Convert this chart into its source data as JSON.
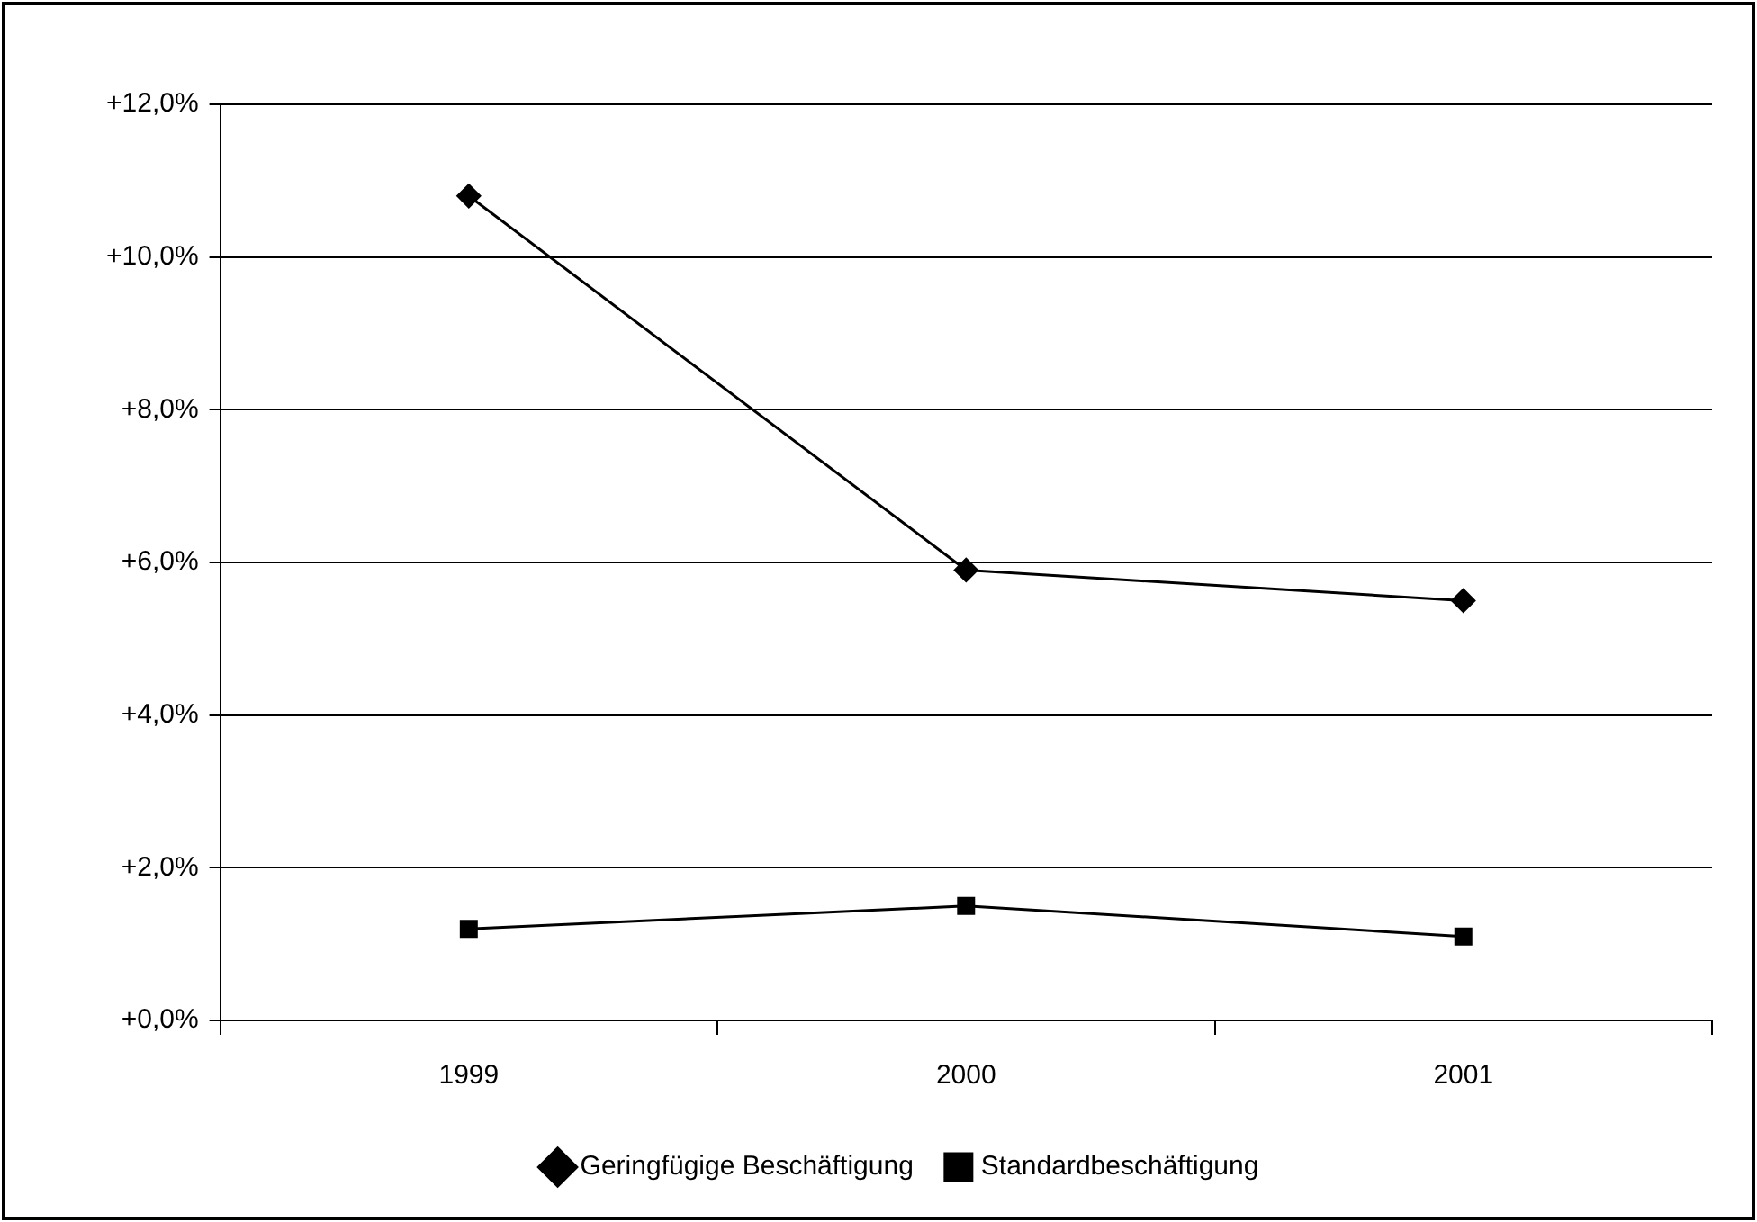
{
  "chart_data": {
    "type": "line",
    "categories": [
      "1999",
      "2000",
      "2001"
    ],
    "series": [
      {
        "name": "Geringfügige Beschäftigung",
        "color": "#000000",
        "marker": "diamond",
        "values": [
          10.8,
          5.9,
          5.5
        ]
      },
      {
        "name": "Standardbeschäftigung",
        "color": "#000000",
        "marker": "square",
        "values": [
          1.2,
          1.5,
          1.1
        ]
      }
    ],
    "ylim": [
      0,
      12
    ],
    "yticks": [
      {
        "value": 0,
        "label": "+0,0%"
      },
      {
        "value": 2,
        "label": "+2,0%"
      },
      {
        "value": 4,
        "label": "+4,0%"
      },
      {
        "value": 6,
        "label": "+6,0%"
      },
      {
        "value": 8,
        "label": "+8,0%"
      },
      {
        "value": 10,
        "label": "+10,0%"
      },
      {
        "value": 12,
        "label": "+12,0%"
      }
    ],
    "grid": "y",
    "legend": "bottom",
    "line_style": "solid"
  }
}
